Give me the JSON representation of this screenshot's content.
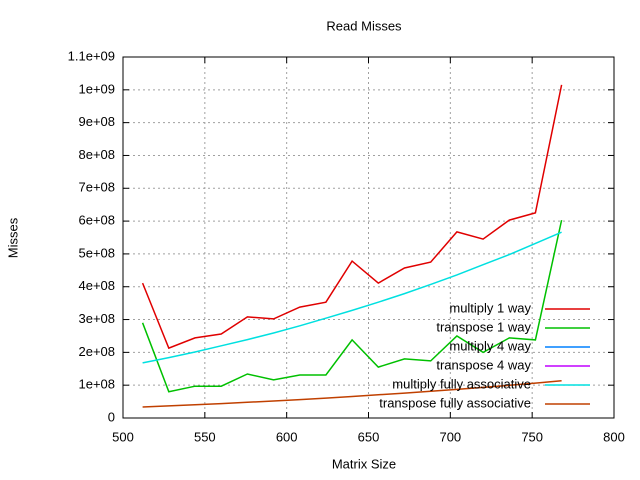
{
  "chart_data": {
    "type": "line",
    "title": "Read Misses",
    "x_label": "Matrix Size",
    "y_label": "Misses",
    "x": [
      512,
      528,
      544,
      560,
      576,
      592,
      608,
      624,
      640,
      656,
      672,
      688,
      704,
      720,
      736,
      752,
      768
    ],
    "series": [
      {
        "name": "multiply 1 way",
        "color": "#e00000",
        "values": [
          411000000,
          213000000,
          244000000,
          256000000,
          308000000,
          302000000,
          338000000,
          353000000,
          478000000,
          411000000,
          457000000,
          475000000,
          567000000,
          545000000,
          603000000,
          625000000,
          1015000000
        ]
      },
      {
        "name": "transpose 1 way",
        "color": "#00c000",
        "values": [
          290000000,
          80000000,
          97000000,
          97000000,
          134000000,
          116000000,
          131000000,
          131000000,
          238000000,
          155000000,
          180000000,
          174000000,
          250000000,
          200000000,
          244000000,
          238000000,
          603000000
        ]
      },
      {
        "name": "multiply 4 way",
        "color": "#0080ff",
        "values": [
          null,
          null,
          null,
          null,
          null,
          null,
          null,
          null,
          null,
          null,
          null,
          null,
          null,
          null,
          null,
          null,
          null
        ]
      },
      {
        "name": "transpose 4 way",
        "color": "#c000ff",
        "values": [
          null,
          null,
          null,
          null,
          null,
          null,
          null,
          null,
          null,
          null,
          null,
          null,
          null,
          null,
          null,
          null,
          null
        ]
      },
      {
        "name": "multiply fully associative",
        "color": "#00e0e0",
        "values": [
          168000000,
          184000000,
          201000000,
          220000000,
          239000000,
          259000000,
          281000000,
          304000000,
          328000000,
          353000000,
          379000000,
          407000000,
          436000000,
          467000000,
          498000000,
          532000000,
          566000000
        ]
      },
      {
        "name": "transpose fully associative",
        "color": "#c04000",
        "values": [
          33600000,
          36800000,
          40200000,
          43900000,
          47800000,
          51900000,
          56200000,
          60700000,
          65500000,
          70600000,
          75900000,
          81400000,
          87200000,
          93300000,
          99700000,
          106300000,
          113200000
        ]
      }
    ],
    "xlim": [
      500,
      800
    ],
    "xticks": [
      500,
      550,
      600,
      650,
      700,
      750,
      800
    ],
    "ylim": [
      0,
      1100000000
    ],
    "yticks": [
      0,
      {
        "value": 100000000,
        "label": "1e+08"
      },
      {
        "value": 200000000,
        "label": "2e+08"
      },
      {
        "value": 300000000,
        "label": "3e+08"
      },
      {
        "value": 400000000,
        "label": "4e+08"
      },
      {
        "value": 500000000,
        "label": "5e+08"
      },
      {
        "value": 600000000,
        "label": "6e+08"
      },
      {
        "value": 700000000,
        "label": "7e+08"
      },
      {
        "value": 800000000,
        "label": "8e+08"
      },
      {
        "value": 900000000,
        "label": "9e+08"
      },
      {
        "value": 1000000000,
        "label": "1e+09"
      },
      {
        "value": 1100000000,
        "label": "1.1e+09"
      }
    ],
    "grid": true,
    "legend": "bottom-right"
  }
}
